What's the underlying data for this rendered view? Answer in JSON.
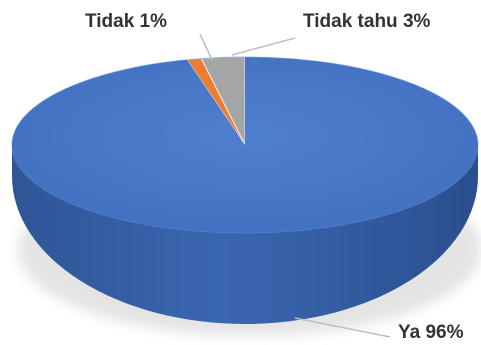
{
  "chart_data": {
    "type": "pie",
    "style": "3d",
    "slices": [
      {
        "label": "Ya",
        "value": 96,
        "display": "Ya 96%",
        "color": "#4472c4"
      },
      {
        "label": "Tidak",
        "value": 1,
        "display": "Tidak 1%",
        "color": "#ed7d31"
      },
      {
        "label": "Tidak tahu",
        "value": 3,
        "display": "Tidak tahu 3%",
        "color": "#a5a5a5"
      }
    ],
    "legend": "none",
    "data_labels": "outside-with-leader-lines"
  }
}
